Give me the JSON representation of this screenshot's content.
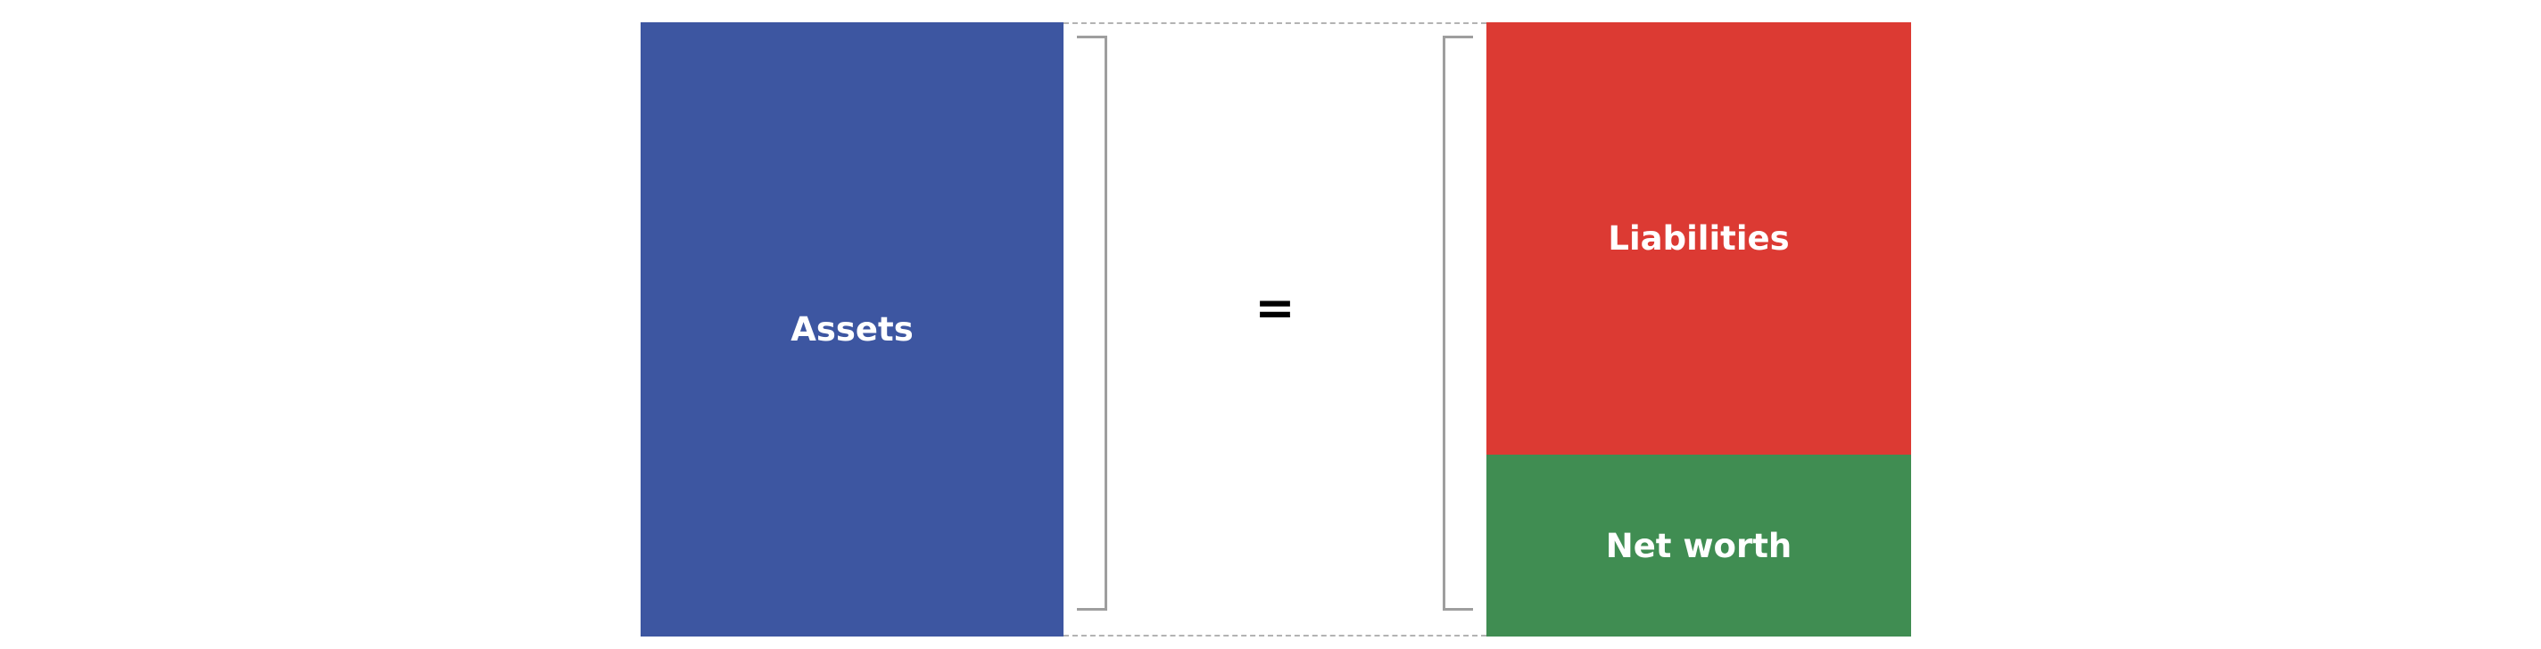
{
  "diagram": {
    "left_block": {
      "label": "Assets",
      "color": "#3d56a1"
    },
    "operator": "=",
    "right_blocks": [
      {
        "label": "Liabilities",
        "color": "#dc3a33"
      },
      {
        "label": "Net worth",
        "color": "#408d52"
      }
    ],
    "bracket_color": "#9e9e9e",
    "dashed_line_color": "#b3b3b3"
  }
}
